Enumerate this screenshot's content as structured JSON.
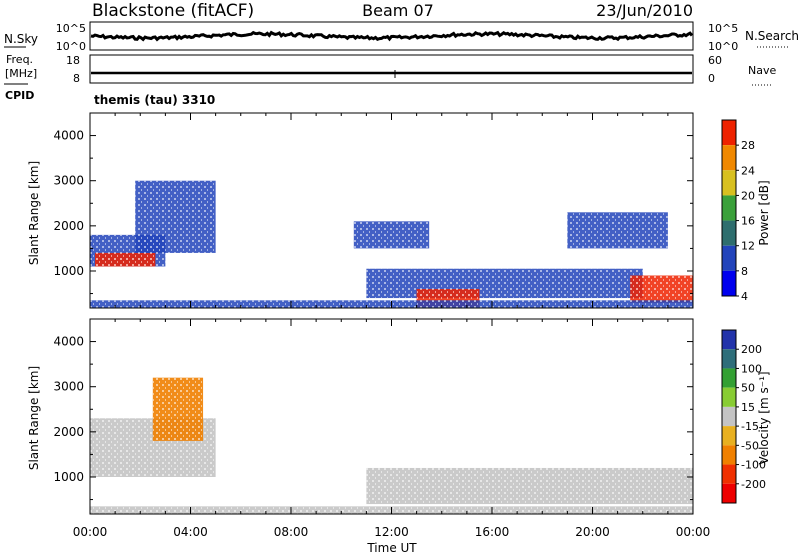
{
  "header": {
    "station": "Blackstone (fitACF)",
    "beam": "Beam 07",
    "date": "23/Jun/2010"
  },
  "noise_panel": {
    "left_label": "N.Sky",
    "left_tick_top": "10^5",
    "left_tick_bottom": "10^0",
    "right_label": "N.Search",
    "right_tick_top": "10^5",
    "right_tick_bottom": "10^0"
  },
  "freq_panel": {
    "label_line1": "Freq.",
    "label_line2": "[MHz]",
    "cpid_label": "CPID",
    "left_tick_top": "18",
    "left_tick_bottom": "8",
    "right_tick_top": "60",
    "right_tick_bottom": "0",
    "right_label": "Nave",
    "cpid_text": "themis (tau) 3310"
  },
  "power_panel": {
    "ylabel": "Slant Range [km]",
    "yticks": [
      "1000",
      "2000",
      "3000",
      "4000"
    ],
    "colorbar_label": "Power [dB]",
    "colorbar_ticks": [
      "4",
      "8",
      "12",
      "16",
      "20",
      "24",
      "28"
    ]
  },
  "velocity_panel": {
    "ylabel": "Slant Range [km]",
    "yticks": [
      "1000",
      "2000",
      "3000",
      "4000"
    ],
    "colorbar_label": "Velocity [m s⁻¹]",
    "colorbar_ticks": [
      "200",
      "100",
      "50",
      "15",
      "-15",
      "-50",
      "-100",
      "-200"
    ]
  },
  "xaxis": {
    "label": "Time UT",
    "ticks": [
      "00:00",
      "04:00",
      "08:00",
      "12:00",
      "16:00",
      "20:00",
      "00:00"
    ]
  },
  "colors": {
    "power_scale": [
      "#0000ee",
      "#2244bb",
      "#2e6e6e",
      "#3aa03a",
      "#d8c020",
      "#f08800",
      "#ee2200"
    ],
    "velocity_scale": [
      "#2233aa",
      "#2e6e7a",
      "#33a033",
      "#88cc33",
      "#c4c4c4",
      "#e8b020",
      "#f08000",
      "#f03000",
      "#ee0000"
    ]
  },
  "chart_data": {
    "type": "heatmap",
    "x_range_hours": [
      0,
      24
    ],
    "y_range_km": [
      180,
      4500
    ],
    "power_range_db": [
      0,
      32
    ],
    "velocity_range_ms": [
      -250,
      250
    ],
    "power_regions": [
      {
        "t0": 0.0,
        "t1": 3.0,
        "r0": 1100,
        "r1": 1800,
        "level": 8
      },
      {
        "t0": 0.2,
        "t1": 2.6,
        "r0": 1100,
        "r1": 1400,
        "level": 28
      },
      {
        "t0": 1.8,
        "t1": 5.0,
        "r0": 1400,
        "r1": 3000,
        "level": 6
      },
      {
        "t0": 11.0,
        "t1": 22.0,
        "r0": 400,
        "r1": 1050,
        "level": 8
      },
      {
        "t0": 13.0,
        "t1": 15.5,
        "r0": 200,
        "r1": 600,
        "level": 28
      },
      {
        "t0": 21.5,
        "t1": 24.0,
        "r0": 300,
        "r1": 900,
        "level": 28
      },
      {
        "t0": 19.0,
        "t1": 23.0,
        "r0": 1500,
        "r1": 2300,
        "level": 6
      },
      {
        "t0": 10.5,
        "t1": 13.5,
        "r0": 1500,
        "r1": 2100,
        "level": 6
      },
      {
        "t0": 0.0,
        "t1": 24.0,
        "r0": 180,
        "r1": 350,
        "level": 6
      }
    ],
    "velocity_regions": [
      {
        "t0": 0.0,
        "t1": 5.0,
        "r0": 1000,
        "r1": 2300,
        "v": 0
      },
      {
        "t0": 2.5,
        "t1": 4.5,
        "r0": 1800,
        "r1": 3200,
        "v": -120
      },
      {
        "t0": 11.0,
        "t1": 24.0,
        "r0": 400,
        "r1": 1200,
        "v": 0
      },
      {
        "t0": 0.0,
        "t1": 24.0,
        "r0": 180,
        "r1": 350,
        "v": 20
      }
    ]
  }
}
